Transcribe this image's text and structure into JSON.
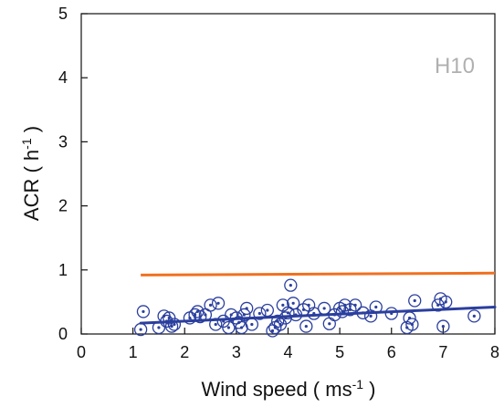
{
  "chart_data": {
    "type": "scatter",
    "annotation": "H10",
    "xlabel_main": "Wind speed ( ms",
    "xlabel_sup": "-1",
    "xlabel_end": " )",
    "ylabel_main": "ACR ( h",
    "ylabel_sup": "-1",
    "ylabel_end": " )",
    "xlim": [
      0,
      8
    ],
    "ylim": [
      0,
      5
    ],
    "xticks": [
      "0",
      "1",
      "2",
      "3",
      "4",
      "5",
      "6",
      "7",
      "8"
    ],
    "yticks": [
      "0",
      "1",
      "2",
      "3",
      "4",
      "5"
    ],
    "grid": false,
    "colors": {
      "points": "#2b3f9e",
      "fit_line": "#2b3f9e",
      "reference_line": "#f07020",
      "annotation": "#b0b0b0"
    },
    "reference_line": {
      "x": [
        1.15,
        8.0
      ],
      "y": [
        0.92,
        0.95
      ]
    },
    "fit_line": {
      "x": [
        1.15,
        8.0
      ],
      "y": [
        0.17,
        0.42
      ]
    },
    "points": [
      [
        1.15,
        0.07
      ],
      [
        1.2,
        0.35
      ],
      [
        1.5,
        0.1
      ],
      [
        1.6,
        0.28
      ],
      [
        1.65,
        0.2
      ],
      [
        1.7,
        0.25
      ],
      [
        1.75,
        0.12
      ],
      [
        1.8,
        0.15
      ],
      [
        2.1,
        0.25
      ],
      [
        2.2,
        0.3
      ],
      [
        2.25,
        0.35
      ],
      [
        2.3,
        0.27
      ],
      [
        2.4,
        0.3
      ],
      [
        2.5,
        0.45
      ],
      [
        2.6,
        0.15
      ],
      [
        2.65,
        0.48
      ],
      [
        2.75,
        0.2
      ],
      [
        2.85,
        0.1
      ],
      [
        2.9,
        0.3
      ],
      [
        3.0,
        0.25
      ],
      [
        3.05,
        0.18
      ],
      [
        3.1,
        0.1
      ],
      [
        3.15,
        0.3
      ],
      [
        3.2,
        0.4
      ],
      [
        3.3,
        0.15
      ],
      [
        3.45,
        0.32
      ],
      [
        3.6,
        0.37
      ],
      [
        3.7,
        0.05
      ],
      [
        3.75,
        0.1
      ],
      [
        3.8,
        0.2
      ],
      [
        3.85,
        0.15
      ],
      [
        3.9,
        0.45
      ],
      [
        3.95,
        0.25
      ],
      [
        4.0,
        0.33
      ],
      [
        4.05,
        0.76
      ],
      [
        4.1,
        0.48
      ],
      [
        4.15,
        0.3
      ],
      [
        4.3,
        0.38
      ],
      [
        4.35,
        0.12
      ],
      [
        4.4,
        0.45
      ],
      [
        4.5,
        0.32
      ],
      [
        4.7,
        0.4
      ],
      [
        4.8,
        0.16
      ],
      [
        4.9,
        0.3
      ],
      [
        5.0,
        0.4
      ],
      [
        5.05,
        0.35
      ],
      [
        5.1,
        0.45
      ],
      [
        5.2,
        0.38
      ],
      [
        5.3,
        0.45
      ],
      [
        5.45,
        0.33
      ],
      [
        5.6,
        0.28
      ],
      [
        5.7,
        0.42
      ],
      [
        6.0,
        0.32
      ],
      [
        6.3,
        0.1
      ],
      [
        6.35,
        0.25
      ],
      [
        6.4,
        0.15
      ],
      [
        6.45,
        0.52
      ],
      [
        6.9,
        0.45
      ],
      [
        6.95,
        0.55
      ],
      [
        7.0,
        0.12
      ],
      [
        7.05,
        0.5
      ],
      [
        7.6,
        0.28
      ]
    ]
  }
}
